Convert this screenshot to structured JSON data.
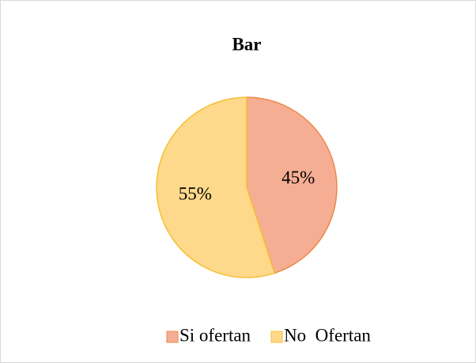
{
  "chart_data": {
    "type": "pie",
    "title": "Bar",
    "categories": [
      "Si ofertan",
      "No  Ofertan"
    ],
    "values": [
      45,
      55
    ],
    "value_labels": [
      "45%",
      "55%"
    ],
    "colors": [
      "#f5ae93",
      "#fed98b"
    ],
    "edge_colors": [
      "#ee8848",
      "#f4c034"
    ],
    "legend": "bottom"
  }
}
